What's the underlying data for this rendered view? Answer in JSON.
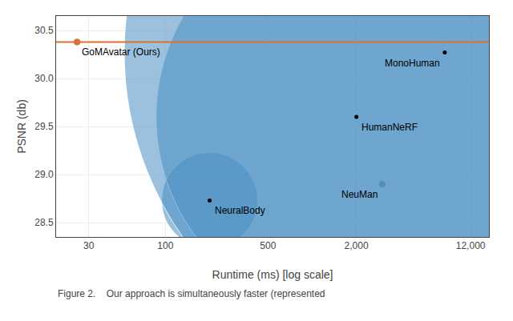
{
  "chart_data": {
    "type": "bubble",
    "xlabel": "Runtime (ms) [log scale]",
    "ylabel": "PSNR (db)",
    "caption": "Figure 2.    Our approach is simultaneously faster (represented",
    "log": "x",
    "grid": true,
    "points": [
      {
        "name": "GoMAvatar (Ours)",
        "x": 25,
        "y": 30.38,
        "color": "#E8702A",
        "marker": "dot"
      },
      {
        "name": "NeuralBody",
        "x": 200,
        "y": 28.73,
        "radius": 60,
        "color": "#4A90C4",
        "marker": "bubble"
      },
      {
        "name": "HumanNeRF",
        "x": 2000,
        "y": 29.6,
        "radius": 250,
        "color": "#4A90C4",
        "marker": "bubble"
      },
      {
        "name": "MonoHuman",
        "x": 8000,
        "y": 30.27,
        "radius": 400,
        "color": "#4A90C4",
        "marker": "bubble"
      },
      {
        "name": "NeuMan",
        "x": 3000,
        "y": 28.9,
        "color": "#4A90C4",
        "marker": "dot"
      }
    ],
    "reference_line": {
      "y": 30.38,
      "color": "#E07030"
    },
    "xlim": [
      18,
      16000
    ],
    "ylim": [
      28.35,
      30.65
    ],
    "xticks": [
      30,
      100,
      500,
      {
        "value": 2000,
        "label": "2,000"
      },
      {
        "value": 12000,
        "label": "12,000"
      }
    ],
    "yticks": [
      28.5,
      {
        "value": 29.0,
        "label": "29.0"
      },
      29.5,
      {
        "value": 30.0,
        "label": "30.0"
      },
      30.5
    ]
  }
}
